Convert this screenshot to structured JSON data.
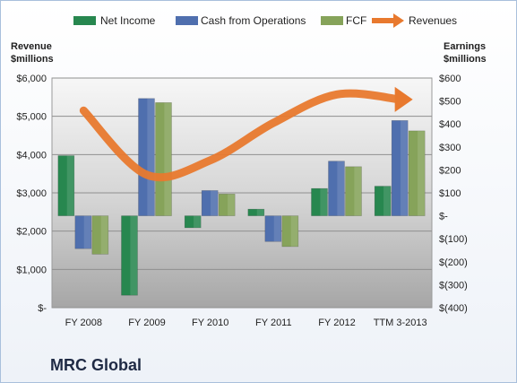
{
  "chart_data": {
    "type": "bar",
    "categories": [
      "FY 2008",
      "FY 2009",
      "FY 2010",
      "FY 2011",
      "FY 2012",
      "TTM 3-2013"
    ],
    "series": [
      {
        "name": "Net Income",
        "axis": "right",
        "values": [
          262,
          -346,
          -52,
          29,
          119,
          129
        ],
        "color": "#27874f"
      },
      {
        "name": "Cash from Operations",
        "axis": "right",
        "values": [
          -143,
          511,
          110,
          -112,
          238,
          415
        ],
        "color": "#4f6fae"
      },
      {
        "name": "FCF",
        "axis": "right",
        "values": [
          -167,
          493,
          95,
          -134,
          214,
          370
        ],
        "color": "#86a35a"
      }
    ],
    "line_series": {
      "name": "Revenues",
      "axis": "left",
      "values": [
        5150,
        3470,
        3850,
        4830,
        5570,
        5440
      ],
      "color": "#e8792e"
    },
    "left_axis": {
      "title": "Revenue\n$millions",
      "ylim": [
        0,
        6000
      ],
      "tick_labels": [
        "$-",
        "$1,000",
        "$2,000",
        "$3,000",
        "$4,000",
        "$5,000",
        "$6,000"
      ]
    },
    "right_axis": {
      "title": "Earnings\n$millions",
      "ylim": [
        -400,
        600
      ],
      "tick_labels": [
        "$(400)",
        "$(300)",
        "$(200)",
        "$(100)",
        "$-",
        "$100",
        "$200",
        "$300",
        "$400",
        "$500",
        "$600"
      ]
    },
    "legend": {
      "placement": "top"
    },
    "grid": true
  },
  "company": "MRC Global"
}
